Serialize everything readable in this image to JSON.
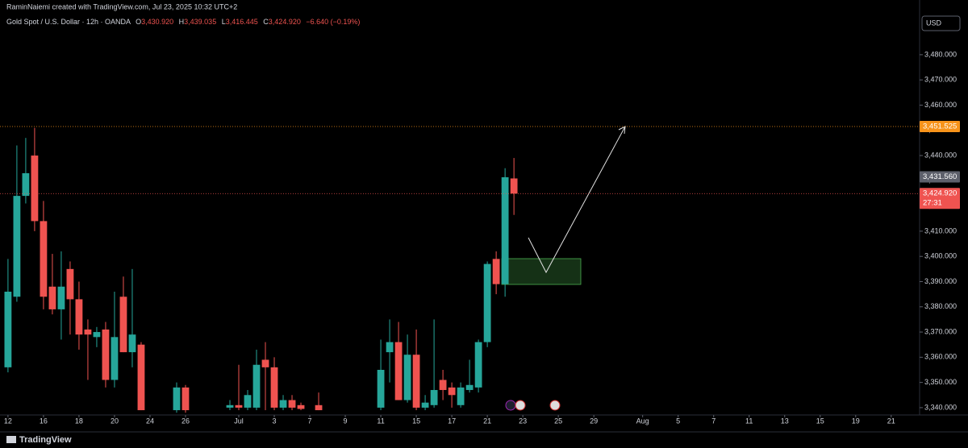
{
  "header": {
    "author": "RaminNaiemi created with TradingView.com, Jul 23, 2025 10:32 UTC+2",
    "symbol": "Gold Spot / U.S. Dollar · 12h · OANDA",
    "open_label": "O",
    "open": "3,430.920",
    "high_label": "H",
    "high": "3,439.035",
    "low_label": "L",
    "low": "3,416.445",
    "close_label": "C",
    "close": "3,424.920",
    "change": "−6.640 (−0.19%)",
    "currency": "USD",
    "brand": "TradingView"
  },
  "chart_data": {
    "type": "candlestick",
    "up_color": "#26a69a",
    "down_color": "#ef5350",
    "xlim": [
      -0.9,
      102.7
    ],
    "ylim": [
      3337.1,
      3501.7
    ],
    "xticks": [
      {
        "value": 0,
        "label": "12"
      },
      {
        "value": 4,
        "label": "16"
      },
      {
        "value": 8,
        "label": "18"
      },
      {
        "value": 12,
        "label": "20"
      },
      {
        "value": 16,
        "label": "24"
      },
      {
        "value": 20,
        "label": "26"
      },
      {
        "value": 26,
        "label": "Jul"
      },
      {
        "value": 30,
        "label": "3"
      },
      {
        "value": 34,
        "label": "7"
      },
      {
        "value": 38,
        "label": "9"
      },
      {
        "value": 42,
        "label": "11"
      },
      {
        "value": 46,
        "label": "15"
      },
      {
        "value": 50,
        "label": "17"
      },
      {
        "value": 54,
        "label": "21"
      },
      {
        "value": 58,
        "label": "23"
      },
      {
        "value": 62,
        "label": "25"
      },
      {
        "value": 66,
        "label": "29"
      },
      {
        "value": 71.5,
        "label": "Aug"
      },
      {
        "value": 75.5,
        "label": "5"
      },
      {
        "value": 79.5,
        "label": "7"
      },
      {
        "value": 83.5,
        "label": "11"
      },
      {
        "value": 87.5,
        "label": "13"
      },
      {
        "value": 91.5,
        "label": "15"
      },
      {
        "value": 95.5,
        "label": "19"
      },
      {
        "value": 99.5,
        "label": "21"
      }
    ],
    "yticks": [
      {
        "value": 3340,
        "label": "3,340.000"
      },
      {
        "value": 3350,
        "label": "3,350.000"
      },
      {
        "value": 3360,
        "label": "3,360.000"
      },
      {
        "value": 3370,
        "label": "3,370.000"
      },
      {
        "value": 3380,
        "label": "3,380.000"
      },
      {
        "value": 3390,
        "label": "3,390.000"
      },
      {
        "value": 3400,
        "label": "3,400.000"
      },
      {
        "value": 3410,
        "label": "3,410.000"
      },
      {
        "value": 3420,
        "label": "3,420.000"
      },
      {
        "value": 3430,
        "label": "3,430.000"
      },
      {
        "value": 3440,
        "label": "3,440.000"
      },
      {
        "value": 3450,
        "label": "3,450.000"
      },
      {
        "value": 3460,
        "label": "3,460.000"
      },
      {
        "value": 3470,
        "label": "3,470.000"
      },
      {
        "value": 3480,
        "label": "3,480.000"
      }
    ],
    "price_lines": [
      {
        "value": 3451.525,
        "label": "3,451.525",
        "color": "#f7931a",
        "line": true
      },
      {
        "value": 3431.56,
        "label": "3,431.560",
        "color": "#5d606b",
        "line": false
      },
      {
        "value": 3424.92,
        "label": "3,424.920",
        "color": "#ef5350",
        "line": true,
        "countdown": "27:31"
      }
    ],
    "candles": [
      {
        "open": 3356,
        "high": 3399,
        "low": 3354,
        "close": 3386
      },
      {
        "open": 3384,
        "high": 3444,
        "low": 3382,
        "close": 3424
      },
      {
        "open": 3424,
        "high": 3447,
        "low": 3421,
        "close": 3433
      },
      {
        "open": 3440,
        "high": 3451,
        "low": 3410,
        "close": 3414
      },
      {
        "open": 3414,
        "high": 3422,
        "low": 3379,
        "close": 3384
      },
      {
        "open": 3388,
        "high": 3401,
        "low": 3377,
        "close": 3379
      },
      {
        "open": 3379,
        "high": 3402,
        "low": 3367,
        "close": 3388
      },
      {
        "open": 3395,
        "high": 3398,
        "low": 3369,
        "close": 3383
      },
      {
        "open": 3383,
        "high": 3390,
        "low": 3363,
        "close": 3369
      },
      {
        "open": 3371,
        "high": 3375,
        "low": 3351,
        "close": 3369
      },
      {
        "open": 3368,
        "high": 3372,
        "low": 3364,
        "close": 3370
      },
      {
        "open": 3371,
        "high": 3374,
        "low": 3348,
        "close": 3351
      },
      {
        "open": 3351,
        "high": 3386,
        "low": 3348,
        "close": 3368
      },
      {
        "open": 3384,
        "high": 3392,
        "low": 3362,
        "close": 3362
      },
      {
        "open": 3362,
        "high": 3395,
        "low": 3356,
        "close": 3369
      },
      {
        "open": 3365,
        "high": 3366,
        "low": 3339,
        "close": 3339
      },
      null,
      null,
      null,
      {
        "open": 3339,
        "high": 3350,
        "low": 3338,
        "close": 3348
      },
      {
        "open": 3348,
        "high": 3349,
        "low": 3338,
        "close": 3339
      },
      null,
      null,
      null,
      null,
      {
        "open": 3340,
        "high": 3343,
        "low": 3339,
        "close": 3341
      },
      {
        "open": 3341,
        "high": 3357,
        "low": 3339,
        "close": 3340
      },
      {
        "open": 3340,
        "high": 3347,
        "low": 3339,
        "close": 3345
      },
      {
        "open": 3340,
        "high": 3363,
        "low": 3339,
        "close": 3357
      },
      {
        "open": 3359,
        "high": 3366,
        "low": 3339,
        "close": 3356
      },
      {
        "open": 3356,
        "high": 3360,
        "low": 3339,
        "close": 3340
      },
      {
        "open": 3340,
        "high": 3345,
        "low": 3339,
        "close": 3343
      },
      {
        "open": 3343,
        "high": 3345,
        "low": 3339,
        "close": 3340
      },
      {
        "open": 3341,
        "high": 3342,
        "low": 3339,
        "close": 3339.5
      },
      null,
      {
        "open": 3341,
        "high": 3346,
        "low": 3339,
        "close": 3339
      },
      null,
      null,
      null,
      null,
      null,
      null,
      {
        "open": 3340,
        "high": 3367,
        "low": 3339,
        "close": 3355
      },
      {
        "open": 3362,
        "high": 3375,
        "low": 3350,
        "close": 3366
      },
      {
        "open": 3366,
        "high": 3374,
        "low": 3343,
        "close": 3343
      },
      {
        "open": 3343,
        "high": 3369,
        "low": 3342,
        "close": 3361
      },
      {
        "open": 3361,
        "high": 3371,
        "low": 3339,
        "close": 3340
      },
      {
        "open": 3340,
        "high": 3345,
        "low": 3339,
        "close": 3342
      },
      {
        "open": 3341,
        "high": 3375,
        "low": 3340,
        "close": 3347
      },
      {
        "open": 3351,
        "high": 3355,
        "low": 3343,
        "close": 3347
      },
      {
        "open": 3348,
        "high": 3350,
        "low": 3340,
        "close": 3345
      },
      {
        "open": 3341,
        "high": 3350,
        "low": 3340,
        "close": 3348
      },
      {
        "open": 3347,
        "high": 3359,
        "low": 3346,
        "close": 3349
      },
      {
        "open": 3348,
        "high": 3367,
        "low": 3346,
        "close": 3366
      },
      {
        "open": 3366,
        "high": 3398,
        "low": 3364,
        "close": 3397
      },
      {
        "open": 3399,
        "high": 3402,
        "low": 3385,
        "close": 3389
      },
      {
        "open": 3389,
        "high": 3435,
        "low": 3384,
        "close": 3431.4
      },
      {
        "open": 3430.92,
        "high": 3439.035,
        "low": 3416.445,
        "close": 3424.92
      }
    ]
  }
}
